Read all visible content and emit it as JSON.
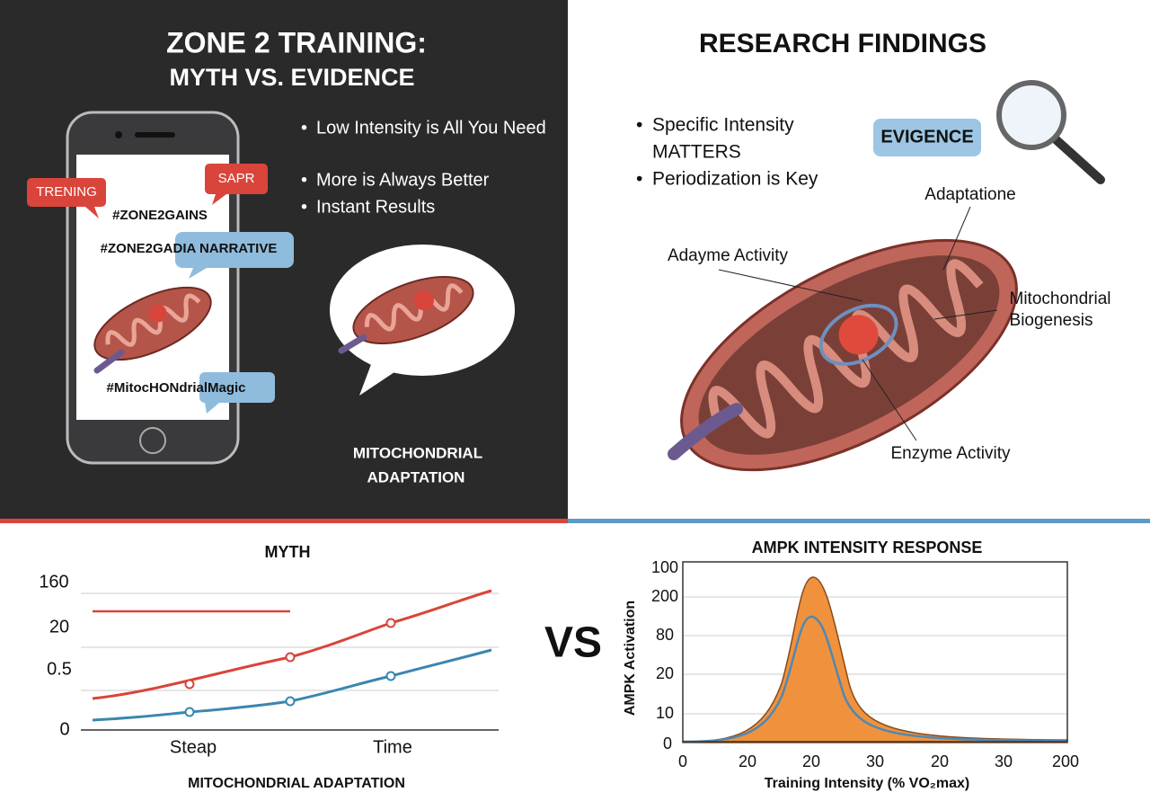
{
  "left_panel": {
    "title": [
      "ZONE 2 TRAINING:",
      "MYTH VS. EVIDENCE"
    ],
    "phone": {
      "tags": [
        "TRENING",
        "SAPR"
      ],
      "hashtags": [
        "#ZONE2GAINS",
        "#ZONE2GADIA NARRATIVE",
        "#MitocHONdrialMagic"
      ]
    },
    "bullets": [
      "Low Intensity is All You Need",
      "More is Always Better",
      "Instant Results"
    ],
    "caption": [
      "MITOCHONDRIAL",
      "ADAPTATION"
    ]
  },
  "right_panel": {
    "title": "RESEARCH FINDINGS",
    "bullets": [
      [
        "Specific Intensity",
        "MATTERS"
      ],
      [
        "Periodization is Key"
      ]
    ],
    "badge": "EVIGENCE",
    "labels": {
      "top": "Adaptatione",
      "left": "Adayme Activity",
      "right": [
        "Mitochondrial",
        "Biogenesis"
      ],
      "bottom": "Enzyme Activity"
    }
  },
  "myth_chart": {
    "title": "MYTH",
    "y_labels": [
      160,
      20,
      0.5,
      0
    ],
    "x_labels": [
      "Steap",
      "Time"
    ],
    "caption": "MITOCHONDRIAL ADAPTATION"
  },
  "vs": "VS",
  "ampk_chart": {
    "title": "AMPK INTENSITY RESPONSE",
    "y_axis_label": "AMPK Activation",
    "y_labels": [
      100,
      200,
      80,
      20,
      10,
      0
    ],
    "x_labels": [
      0,
      20,
      20,
      30,
      20,
      30,
      200
    ],
    "x_axis_label": "Training Intensity (% VO₂max)"
  }
}
